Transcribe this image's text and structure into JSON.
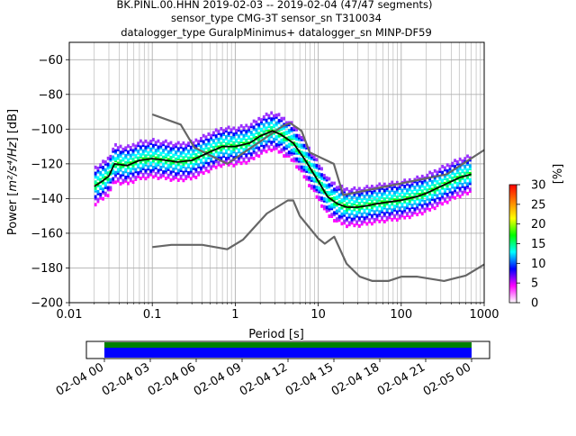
{
  "chart_data": {
    "type": "heatmap",
    "title_lines": [
      "BK.PINL.00.HHN   2019-02-03 -- 2019-02-04  (47/47 segments)",
      "sensor_type CMG-3T sensor_sn T310034",
      "datalogger_type GuralpMinimus+ datalogger_sn MINP-DF59"
    ],
    "xlabel": "Period [s]",
    "ylabel_main": "Power [",
    "ylabel_units": "m²/s⁴/Hz",
    "ylabel_tail": "] [dB]",
    "x_scale": "log",
    "xlim": [
      0.01,
      1000
    ],
    "ylim": [
      -200,
      -50
    ],
    "x_ticks": [
      {
        "v": 0.01,
        "label": "0.01"
      },
      {
        "v": 0.1,
        "label": "0.1"
      },
      {
        "v": 1,
        "label": "1"
      },
      {
        "v": 10,
        "label": "10"
      },
      {
        "v": 100,
        "label": "100"
      },
      {
        "v": 1000,
        "label": "1000"
      }
    ],
    "y_ticks": [
      {
        "v": -60,
        "label": "−60"
      },
      {
        "v": -80,
        "label": "−80"
      },
      {
        "v": -100,
        "label": "−100"
      },
      {
        "v": -120,
        "label": "−120"
      },
      {
        "v": -140,
        "label": "−140"
      },
      {
        "v": -160,
        "label": "−160"
      },
      {
        "v": -180,
        "label": "−180"
      },
      {
        "v": -200,
        "label": "−200"
      }
    ],
    "grid": true,
    "colorbar": {
      "label": "[%]",
      "range": [
        0,
        30
      ],
      "ticks": [
        {
          "v": 0,
          "label": "0"
        },
        {
          "v": 5,
          "label": "5"
        },
        {
          "v": 10,
          "label": "10"
        },
        {
          "v": 15,
          "label": "15"
        },
        {
          "v": 20,
          "label": "20"
        },
        {
          "v": 25,
          "label": "25"
        },
        {
          "v": 30,
          "label": "30"
        }
      ],
      "colors": [
        "#ffffff",
        "#ff00ff",
        "#0000ff",
        "#00ffff",
        "#00ff00",
        "#ffff00",
        "#ff8000",
        "#ff0000"
      ]
    },
    "series": [
      {
        "name": "mean",
        "x": [
          0.02,
          0.025,
          0.03,
          0.035,
          0.05,
          0.07,
          0.1,
          0.15,
          0.2,
          0.3,
          0.5,
          0.7,
          1,
          1.5,
          2,
          2.8,
          3.5,
          5,
          7,
          10,
          13,
          17,
          22,
          30,
          40,
          50,
          70,
          100,
          150,
          200,
          300,
          500,
          700
        ],
        "y": [
          -133,
          -130,
          -127,
          -120,
          -121,
          -118,
          -117,
          -118,
          -119,
          -118,
          -113,
          -110,
          -110,
          -108,
          -104,
          -101,
          -103,
          -108,
          -118,
          -130,
          -139,
          -143,
          -145,
          -145,
          -144,
          -143,
          -142,
          -141,
          -139,
          -137,
          -133,
          -128,
          -126
        ]
      },
      {
        "name": "noise model high",
        "x": [
          0.1,
          0.22,
          0.32,
          0.8,
          3.8,
          4.6,
          6.3,
          7.9,
          15.4,
          20,
          354.8,
          1000
        ],
        "y": [
          -91.5,
          -97.4,
          -110.5,
          -120,
          -98,
          -96.5,
          -101,
          -113.5,
          -120,
          -138,
          -126,
          -112
        ]
      },
      {
        "name": "noise model low",
        "x": [
          0.1,
          0.17,
          0.4,
          0.8,
          1.24,
          2.4,
          4.3,
          5,
          6,
          10,
          12,
          15.6,
          21.9,
          31.6,
          45,
          70,
          101,
          154,
          328,
          600,
          1000
        ],
        "y": [
          -168,
          -166.7,
          -166.7,
          -169.2,
          -163.7,
          -148.6,
          -141.1,
          -141.1,
          -150,
          -163,
          -166,
          -162,
          -177.5,
          -185,
          -187.5,
          -187.5,
          -185,
          -185,
          -187.5,
          -184.4,
          -178
        ]
      }
    ],
    "timeline": {
      "tick_labels": [
        "02-04 00",
        "02-04 03",
        "02-04 06",
        "02-04 09",
        "02-04 12",
        "02-04 15",
        "02-04 18",
        "02-04 21",
        "02-05 00"
      ],
      "coverage_colors": {
        "data": "#0000ff",
        "top": "#008000"
      }
    }
  }
}
